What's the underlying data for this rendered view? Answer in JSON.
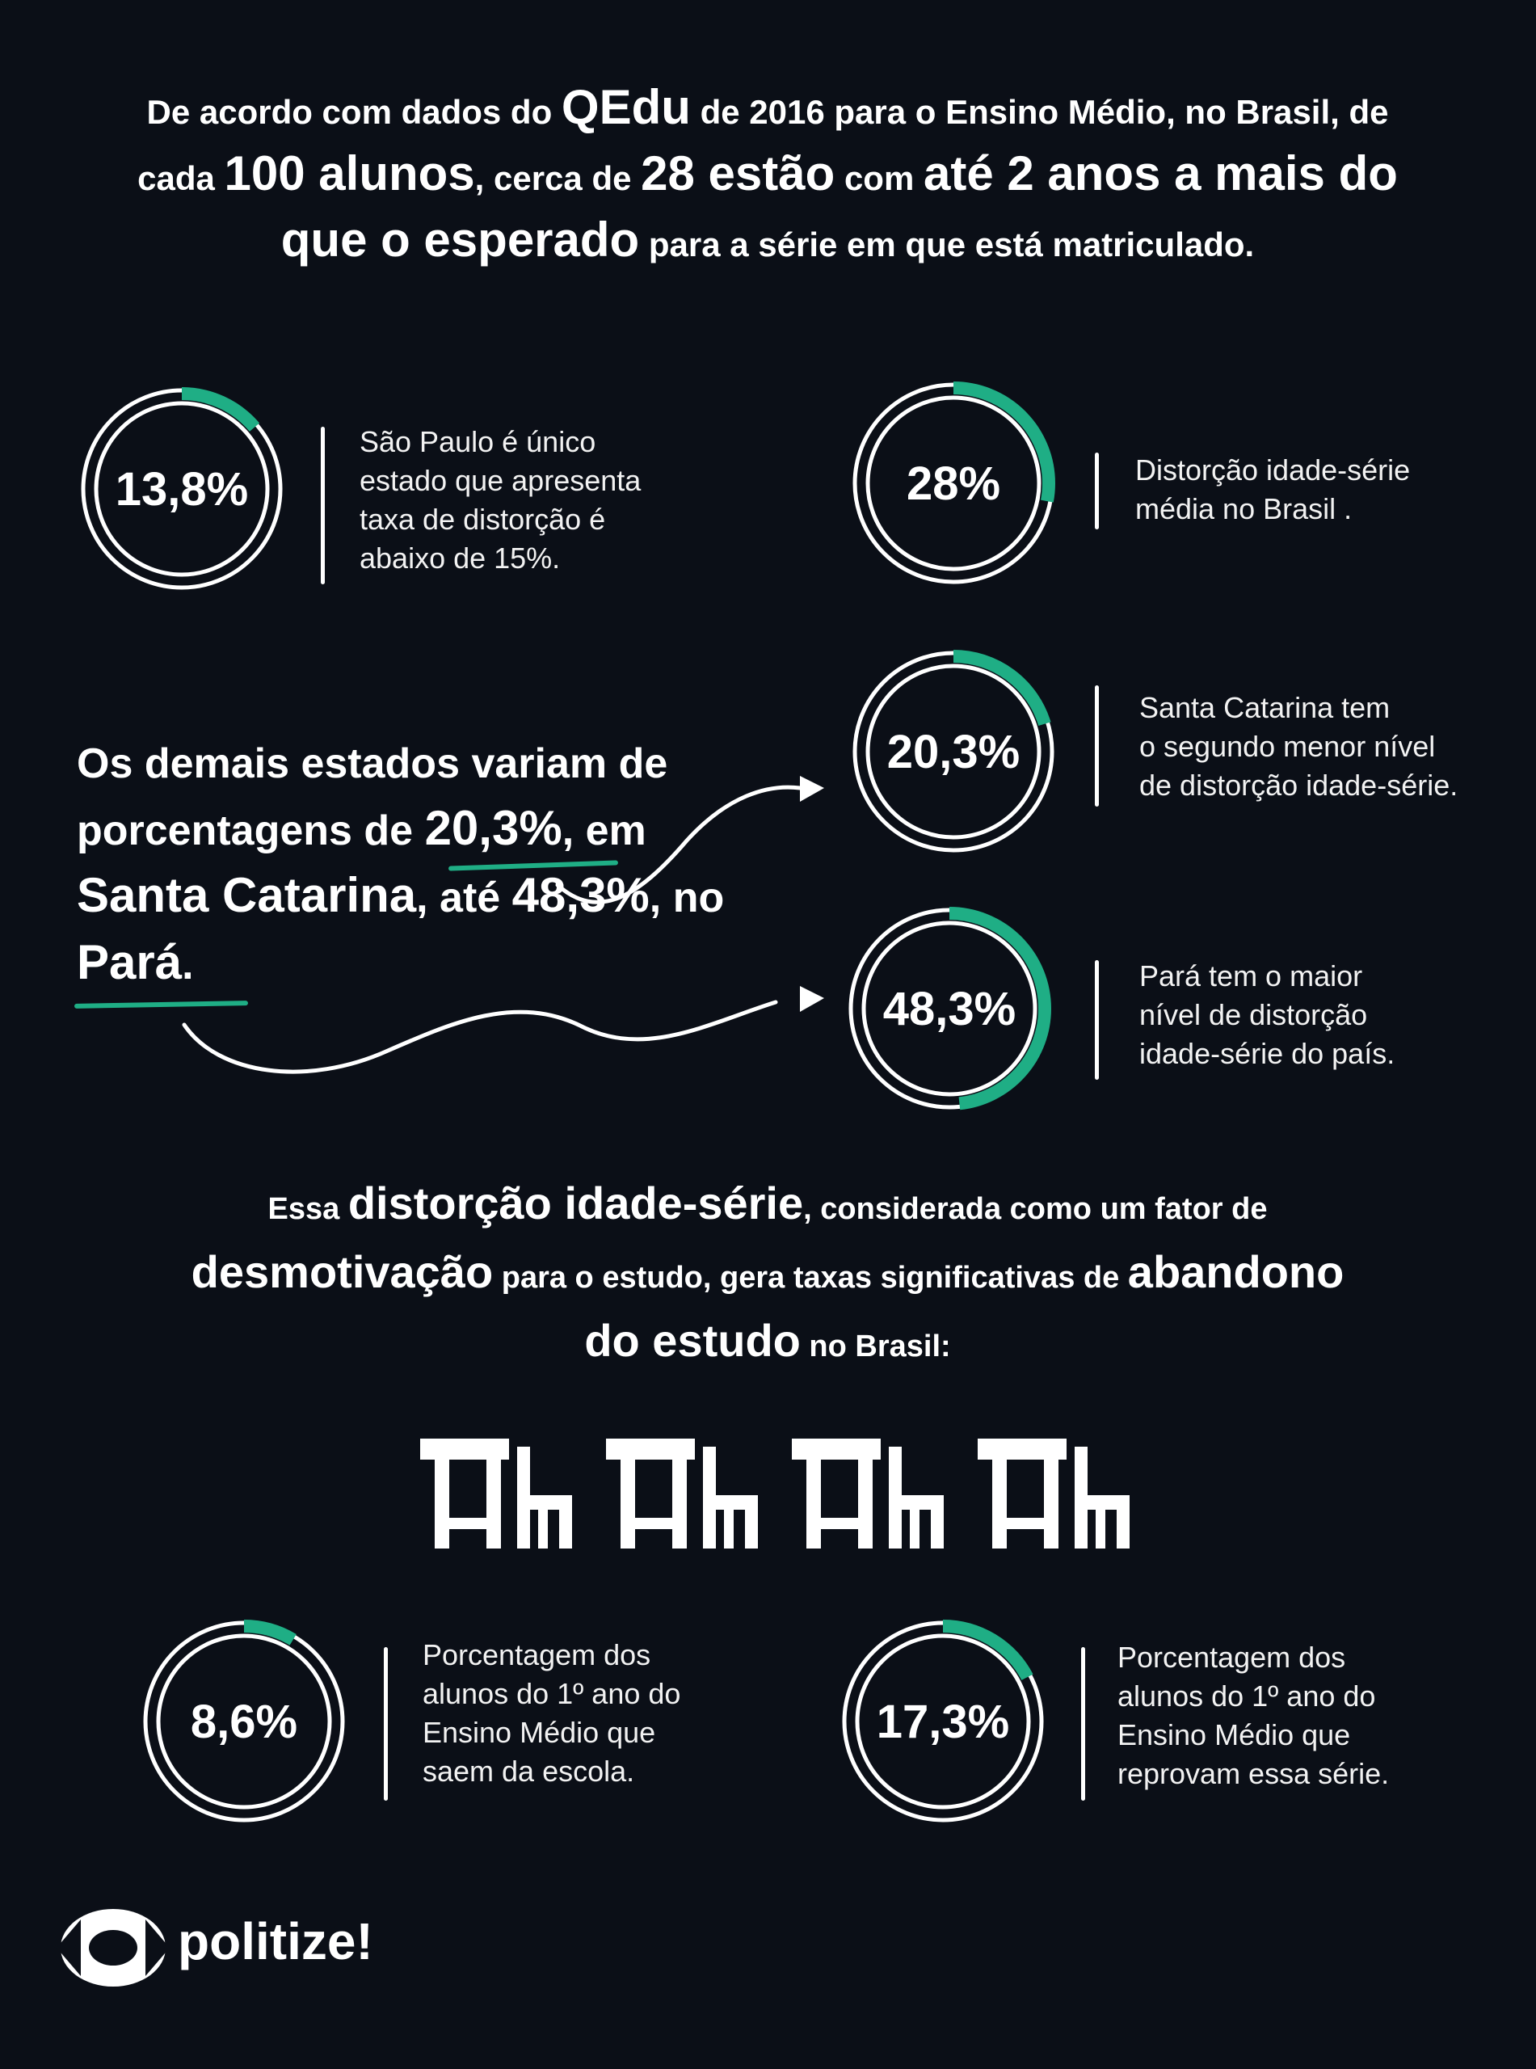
{
  "intro": {
    "p1": "De acordo com dados do ",
    "qedu": "QEdu",
    "p2": " de 2016 para o Ensino Médio, no Brasil, de cada ",
    "alunos": "100 alunos",
    "p3": ", cerca de ",
    "estao": "28 estão",
    "p4": " com ",
    "anos": "até 2 anos a mais do que o esperado",
    "p5": " para a série em que está matriculado."
  },
  "stats": {
    "sp": {
      "value": "13,8%",
      "fraction": 0.138,
      "text": [
        "São Paulo é único",
        "estado que apresenta",
        "taxa de distorção é",
        "abaixo de 15%."
      ]
    },
    "brasil": {
      "value": "28%",
      "fraction": 0.28,
      "text": [
        "Distorção idade-série",
        "média no Brasil ."
      ]
    },
    "sc": {
      "value": "20,3%",
      "fraction": 0.203,
      "text": [
        "Santa Catarina tem",
        "o segundo menor nível",
        "de distorção idade-série."
      ]
    },
    "para": {
      "value": "48,3%",
      "fraction": 0.483,
      "text": [
        "Pará tem o maior",
        "nível de distorção",
        "idade-série do país."
      ]
    },
    "abandono": {
      "value": "8,6%",
      "fraction": 0.086,
      "text": [
        "Porcentagem dos",
        "alunos do 1º ano do",
        "Ensino Médio que",
        "saem da escola."
      ]
    },
    "reprova": {
      "value": "17,3%",
      "fraction": 0.173,
      "text": [
        "Porcentagem dos",
        "alunos do 1º ano do",
        "Ensino Médio que",
        "reprovam essa série."
      ]
    }
  },
  "middle": {
    "a": "Os demais estados variam de porcentagens de ",
    "v1": "20,3%",
    "b": ", em ",
    "sc": "Santa Catarina",
    "c": ", até ",
    "v2": "48,3%",
    "d": ", no ",
    "pa": "Pará",
    "e": "."
  },
  "bottom": {
    "a": "Essa ",
    "distorcao": "distorção idade-série",
    "b": ", considerada como um fator de ",
    "desmot": "desmotivação",
    "c": " para o estudo, gera taxas significativas de ",
    "abandono": "abandono do estudo",
    "d": " no Brasil:"
  },
  "logo": {
    "name": "politize!"
  },
  "colors": {
    "background": "#0b0f17",
    "accent": "#1fae85",
    "ring": "#ffffff"
  }
}
